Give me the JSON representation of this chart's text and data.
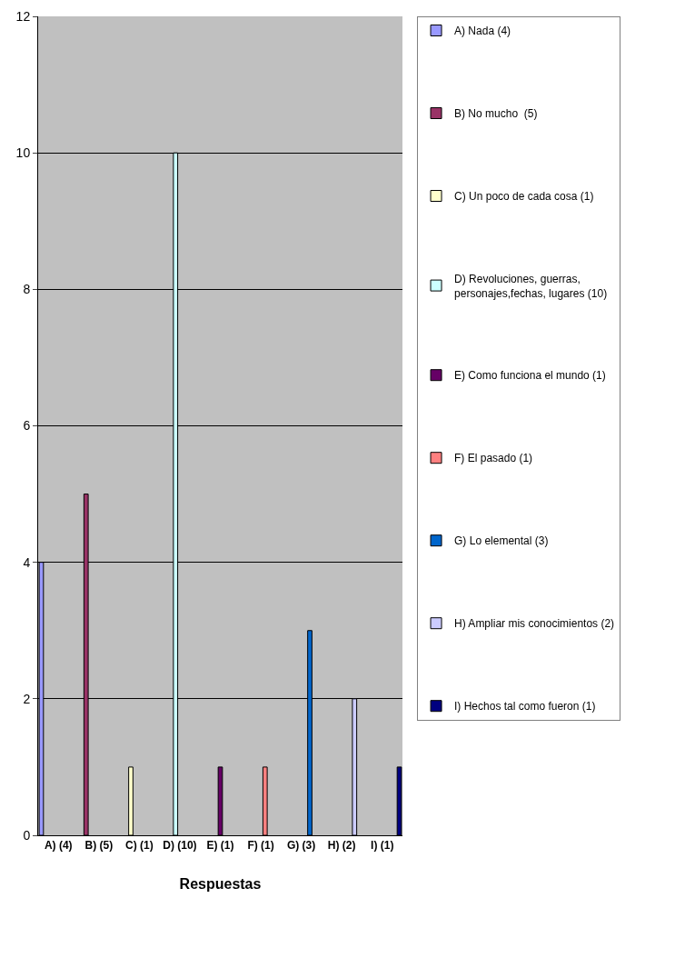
{
  "chart_data": {
    "type": "bar",
    "xlabel": "Respuestas",
    "categories": [
      "A) (4)",
      "B) (5)",
      "C) (1)",
      "D) (10)",
      "E) (1)",
      "F) (1)",
      "G) (3)",
      "H) (2)",
      "I) (1)"
    ],
    "series": [
      {
        "name": "A) Nada (4)",
        "color": "#9999ff",
        "values": [
          4,
          null,
          null,
          null,
          null,
          null,
          null,
          null,
          null
        ]
      },
      {
        "name": "B) No mucho  (5)",
        "color": "#993366",
        "values": [
          null,
          5,
          null,
          null,
          null,
          null,
          null,
          null,
          null
        ]
      },
      {
        "name": "C) Un poco de cada cosa (1)",
        "color": "#ffffcc",
        "values": [
          null,
          null,
          1,
          null,
          null,
          null,
          null,
          null,
          null
        ]
      },
      {
        "name": "D) Revoluciones, guerras, personajes,fechas, lugares (10)",
        "color": "#ccffff",
        "values": [
          null,
          null,
          null,
          10,
          null,
          null,
          null,
          null,
          null
        ]
      },
      {
        "name": "E) Como funciona el mundo (1)",
        "color": "#660066",
        "values": [
          null,
          null,
          null,
          null,
          1,
          null,
          null,
          null,
          null
        ]
      },
      {
        "name": "F) El pasado (1)",
        "color": "#ff8080",
        "values": [
          null,
          null,
          null,
          null,
          null,
          1,
          null,
          null,
          null
        ]
      },
      {
        "name": "G) Lo elemental (3)",
        "color": "#0066cc",
        "values": [
          null,
          null,
          null,
          null,
          null,
          null,
          3,
          null,
          null
        ]
      },
      {
        "name": "H) Ampliar mis conocimientos (2)",
        "color": "#ccccff",
        "values": [
          null,
          null,
          null,
          null,
          null,
          null,
          null,
          2,
          null
        ]
      },
      {
        "name": "I) Hechos tal como fueron (1)",
        "color": "#000080",
        "values": [
          null,
          null,
          null,
          null,
          null,
          null,
          null,
          null,
          1
        ]
      }
    ],
    "ylim": [
      0,
      12
    ],
    "yticks": [
      0,
      2,
      4,
      6,
      8,
      10,
      12
    ],
    "grid": "y",
    "legend": "right"
  }
}
